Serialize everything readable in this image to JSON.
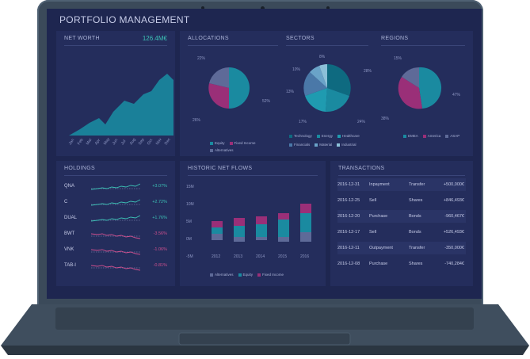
{
  "app": {
    "title": "PORTFOLIO MANAGEMENT"
  },
  "net_worth": {
    "title": "NET WORTH",
    "value": "126.4M€",
    "months": [
      "Jan",
      "Feb",
      "Mar",
      "Apr",
      "May",
      "Jun",
      "Jul",
      "Aug",
      "Sep",
      "Oct",
      "Nov",
      "Dec"
    ]
  },
  "allocations": {
    "title": "ALLOCATIONS",
    "labels": [
      "22%",
      "26%",
      "52%"
    ],
    "legend": [
      "Equity",
      "Fixed Income",
      "Alternatives"
    ]
  },
  "sectors": {
    "title": "SECTORS",
    "labels": [
      "8%",
      "10%",
      "28%",
      "13%",
      "17%",
      "24%"
    ],
    "legend": [
      "Technology",
      "Energy",
      "Healthcare",
      "Financials",
      "Material",
      "Industrial"
    ]
  },
  "regions": {
    "title": "REGIONS",
    "labels": [
      "15%",
      "47%",
      "38%"
    ],
    "legend": [
      "EMEA",
      "America",
      "ASAP"
    ]
  },
  "holdings": {
    "title": "HOLDINGS",
    "rows": [
      {
        "ticker": "QNA",
        "change": "+3.07%",
        "up": true
      },
      {
        "ticker": "C",
        "change": "+2.72%",
        "up": true
      },
      {
        "ticker": "DUAL",
        "change": "+1.76%",
        "up": true
      },
      {
        "ticker": "BWT",
        "change": "-3.56%",
        "up": false
      },
      {
        "ticker": "VNK",
        "change": "-1.06%",
        "up": false
      },
      {
        "ticker": "TAB-I",
        "change": "-0.81%",
        "up": false
      }
    ]
  },
  "flows": {
    "title": "HISTORIC NET FLOWS",
    "yticks": [
      "15M",
      "10M",
      "5M",
      "0M",
      "-5M"
    ],
    "years": [
      "2012",
      "2013",
      "2014",
      "2015",
      "2016"
    ],
    "legend": [
      "Alternatives",
      "Equity",
      "Fixed Income"
    ]
  },
  "transactions": {
    "title": "TRANSACTIONS",
    "rows": [
      {
        "date": "2016-12-31",
        "type": "Inpayment",
        "kind": "Transfer",
        "amount": "+500,000€"
      },
      {
        "date": "2016-12-25",
        "type": "Sell",
        "kind": "Shares",
        "amount": "+846,493€"
      },
      {
        "date": "2016-12-20",
        "type": "Purchase",
        "kind": "Bonds",
        "amount": "-960,467€"
      },
      {
        "date": "2016-12-17",
        "type": "Sell",
        "kind": "Bonds",
        "amount": "+526,493€"
      },
      {
        "date": "2016-12-11",
        "type": "Outpayment",
        "kind": "Transfer",
        "amount": "-350,000€"
      },
      {
        "date": "2016-12-08",
        "type": "Purchase",
        "kind": "Shares",
        "amount": "-740,284€"
      }
    ]
  },
  "colors": {
    "teal": "#1a8aa0",
    "magenta": "#9a2f78",
    "slate": "#5e6a98",
    "positive": "#3cc0b5",
    "negative": "#d0508f"
  }
}
